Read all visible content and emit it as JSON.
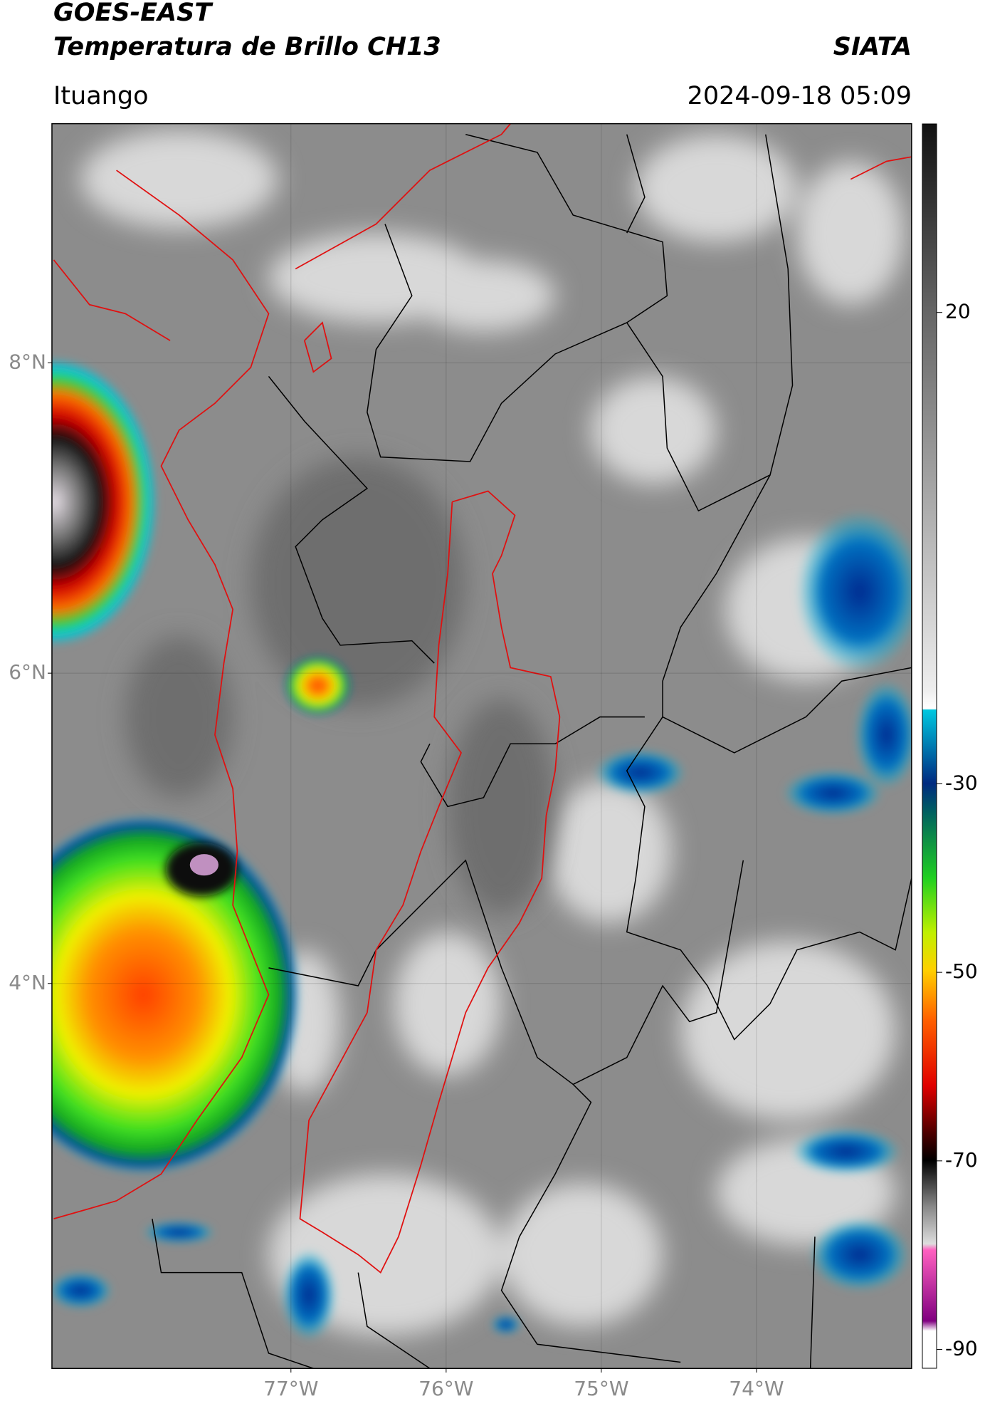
{
  "header": {
    "title": "GOES-EAST",
    "subtitle": "Temperatura de Brillo CH13",
    "brand": "SIATA",
    "location": "Ituango",
    "timestamp": "2024-09-18 05:09"
  },
  "map": {
    "xlim": [
      -78.54,
      -73.0
    ],
    "ylim": [
      1.52,
      9.54
    ],
    "xticks": [
      {
        "value": -77,
        "label": "77°W"
      },
      {
        "value": -76,
        "label": "76°W"
      },
      {
        "value": -75,
        "label": "75°W"
      },
      {
        "value": -74,
        "label": "74°W"
      }
    ],
    "yticks": [
      {
        "value": 8,
        "label": "8°N"
      },
      {
        "value": 6,
        "label": "6°N"
      },
      {
        "value": 4,
        "label": "4°N"
      }
    ],
    "grid": true
  },
  "colorbar": {
    "lim": [
      -92,
      40
    ],
    "ticks": [
      20,
      -30,
      -50,
      -70,
      -90
    ]
  }
}
